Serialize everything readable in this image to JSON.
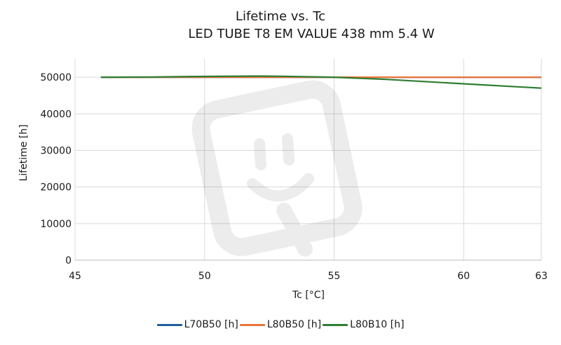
{
  "chart_data": {
    "type": "line",
    "title": "Lifetime vs. Tc",
    "subtitle": "LED TUBE T8 EM VALUE 438 mm 5.4 W",
    "xlabel": "Tc [°C]",
    "ylabel": "Lifetime [h]",
    "xlim": [
      45,
      63
    ],
    "ylim": [
      0,
      55000
    ],
    "xticks": [
      45,
      50,
      55,
      60,
      63
    ],
    "yticks": [
      0,
      10000,
      20000,
      30000,
      40000,
      50000
    ],
    "grid": true,
    "legend_position": "bottom",
    "series": [
      {
        "name": "L70B50 [h]",
        "color": "#1f5f99",
        "x": [
          46,
          48,
          50,
          52,
          53,
          55,
          57,
          60,
          63
        ],
        "y": [
          50000,
          50000,
          50000,
          50000,
          50000,
          50000,
          50000,
          50000,
          50000
        ]
      },
      {
        "name": "L80B50 [h]",
        "color": "#e8743b",
        "x": [
          46,
          48,
          50,
          52,
          53,
          55,
          57,
          60,
          63
        ],
        "y": [
          50000,
          50000,
          50000,
          50000,
          50000,
          50000,
          50000,
          50000,
          50000
        ]
      },
      {
        "name": "L80B10 [h]",
        "color": "#2e7d32",
        "x": [
          46,
          48,
          50,
          52,
          53,
          55,
          57,
          60,
          63
        ],
        "y": [
          50000,
          50050,
          50200,
          50300,
          50250,
          50000,
          49400,
          48200,
          47000
        ]
      }
    ]
  }
}
